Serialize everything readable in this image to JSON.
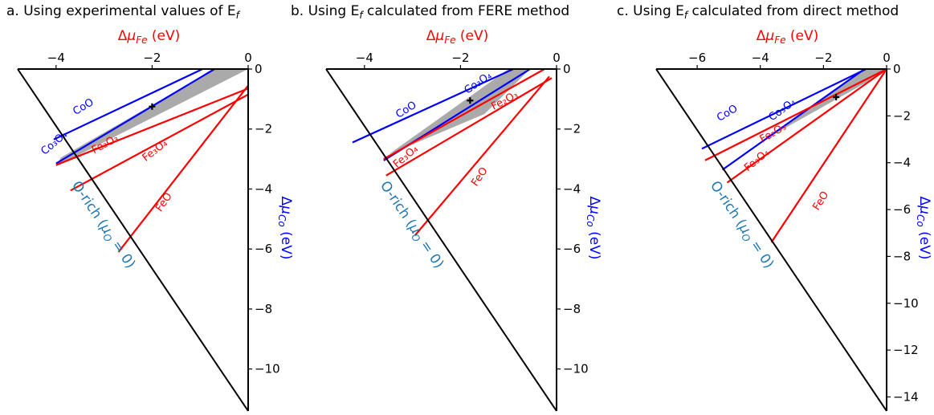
{
  "chart_data": [
    {
      "type": "line",
      "title": "a. Using experimental values of E_f",
      "title_parts": [
        "a. Using experimental values of E",
        "f"
      ],
      "xlabel": "Δμ_Fe (eV)",
      "ylabel": "Δμ_Co (eV)",
      "xlim": [
        -4.8,
        0
      ],
      "ylim": [
        -11.4,
        0
      ],
      "xticks": [
        -4,
        -2,
        0
      ],
      "yticks": [
        0,
        -2,
        -4,
        -6,
        -8,
        -10
      ],
      "boundary_label": "O-rich (μ_O = 0)",
      "stable_region": [
        [
          0,
          0
        ],
        [
          -0.7,
          0
        ],
        [
          -3.9,
          -2.95
        ],
        [
          -4.0,
          -3.25
        ]
      ],
      "marker": [
        -2.0,
        -1.25
      ],
      "series": [
        {
          "name": "CoO",
          "color": "#0000ff",
          "x": [
            -4.05,
            -0.95
          ],
          "y": [
            -2.35,
            0
          ],
          "label_at": [
            -3.4,
            -1.35
          ],
          "angle": -31
        },
        {
          "name": "Co₃O₄",
          "color": "#0000ff",
          "x": [
            -4.0,
            -0.7
          ],
          "y": [
            -3.15,
            0
          ],
          "label_at": [
            -4.0,
            -2.55
          ],
          "angle": -40
        },
        {
          "name": "Fe₂O₃",
          "color": "#ff0000",
          "x": [
            -4.0,
            0
          ],
          "y": [
            -3.2,
            -0.65
          ],
          "label_at": [
            -2.95,
            -2.6
          ],
          "angle": -28
        },
        {
          "name": "Fe₃O₄",
          "color": "#ff0000",
          "x": [
            -3.7,
            0
          ],
          "y": [
            -4.05,
            -0.85
          ],
          "label_at": [
            -1.9,
            -2.8
          ],
          "angle": -38
        },
        {
          "name": "FeO",
          "color": "#ff0000",
          "x": [
            -2.7,
            0
          ],
          "y": [
            -6.1,
            -0.55
          ],
          "label_at": [
            -1.7,
            -4.5
          ],
          "angle": -55
        }
      ]
    },
    {
      "type": "line",
      "title": "b. Using E_f calculated from FERE method",
      "title_parts": [
        "b. Using E",
        "f",
        " calculated from FERE method"
      ],
      "xlabel": "Δμ_Fe (eV)",
      "ylabel": "Δμ_Co (eV)",
      "xlim": [
        -4.8,
        0
      ],
      "ylim": [
        -11.4,
        0
      ],
      "xticks": [
        -4,
        -2,
        0
      ],
      "yticks": [
        0,
        -2,
        -4,
        -6,
        -8,
        -10
      ],
      "boundary_label": "O-rich (μ_O = 0)",
      "stable_region": [
        [
          -0.55,
          0
        ],
        [
          -1.0,
          0
        ],
        [
          -3.5,
          -2.85
        ],
        [
          -1.5,
          -1.5
        ]
      ],
      "marker": [
        -1.8,
        -1.05
      ],
      "series": [
        {
          "name": "CoO",
          "color": "#0000ff",
          "x": [
            -4.25,
            -0.9
          ],
          "y": [
            -2.45,
            0
          ],
          "label_at": [
            -3.1,
            -1.45
          ],
          "angle": -31
        },
        {
          "name": "Co₃O₄",
          "color": "#0000ff",
          "x": [
            -3.6,
            -0.55
          ],
          "y": [
            -3.05,
            0
          ],
          "label_at": [
            -1.6,
            -0.55
          ],
          "angle": -34
        },
        {
          "name": "Fe₂O₃",
          "color": "#ff0000",
          "x": [
            -3.6,
            -0.25
          ],
          "y": [
            -3.0,
            0
          ],
          "label_at": [
            -1.05,
            -1.15
          ],
          "angle": -28
        },
        {
          "name": "Fe₃O₄",
          "color": "#ff0000",
          "x": [
            -3.55,
            -0.1
          ],
          "y": [
            -3.55,
            -0.3
          ],
          "label_at": [
            -3.1,
            -3.0
          ],
          "angle": -40
        },
        {
          "name": "FeO",
          "color": "#ff0000",
          "x": [
            -2.95,
            -0.15
          ],
          "y": [
            -5.55,
            -0.25
          ],
          "label_at": [
            -1.55,
            -3.65
          ],
          "angle": -56
        }
      ]
    },
    {
      "type": "line",
      "title": "c. Using E_f calculated from direct method",
      "title_parts": [
        "c. Using E",
        "f",
        " calculated from direct method"
      ],
      "xlabel": "Δμ_Fe (eV)",
      "ylabel": "Δμ_Co (eV)",
      "xlim": [
        -7.3,
        0
      ],
      "ylim": [
        -14.6,
        0
      ],
      "xticks": [
        -6,
        -4,
        -2,
        0
      ],
      "yticks": [
        0,
        -2,
        -4,
        -6,
        -8,
        -10,
        -12,
        -14
      ],
      "boundary_label": "O-rich (μ_O = 0)",
      "stable_region": [
        [
          0,
          0
        ],
        [
          -0.75,
          0
        ],
        [
          -3.85,
          -3.0
        ],
        [
          -0.15,
          -0.2
        ]
      ],
      "marker": [
        -1.6,
        -1.2
      ],
      "series": [
        {
          "name": "CoO",
          "color": "#0000ff",
          "x": [
            -5.85,
            -0.65
          ],
          "y": [
            -3.4,
            0
          ],
          "label_at": [
            -5.0,
            -2.0
          ],
          "angle": -31
        },
        {
          "name": "Co₃O₄",
          "color": "#0000ff",
          "x": [
            -5.2,
            -0.7
          ],
          "y": [
            -4.3,
            0
          ],
          "label_at": [
            -3.25,
            -1.85
          ],
          "angle": -36
        },
        {
          "name": "Fe₂O₃",
          "color": "#ff0000",
          "x": [
            -5.75,
            0
          ],
          "y": [
            -3.9,
            0
          ],
          "label_at": [
            -3.55,
            -2.85
          ],
          "angle": -30
        },
        {
          "name": "Fe₃O₄",
          "color": "#ff0000",
          "x": [
            -5.05,
            0
          ],
          "y": [
            -4.85,
            0
          ],
          "label_at": [
            -4.05,
            -4.0
          ],
          "angle": -39
        },
        {
          "name": "FeO",
          "color": "#ff0000",
          "x": [
            -3.65,
            0
          ],
          "y": [
            -7.4,
            0
          ],
          "label_at": [
            -2.0,
            -5.7
          ],
          "angle": -58
        }
      ]
    }
  ]
}
